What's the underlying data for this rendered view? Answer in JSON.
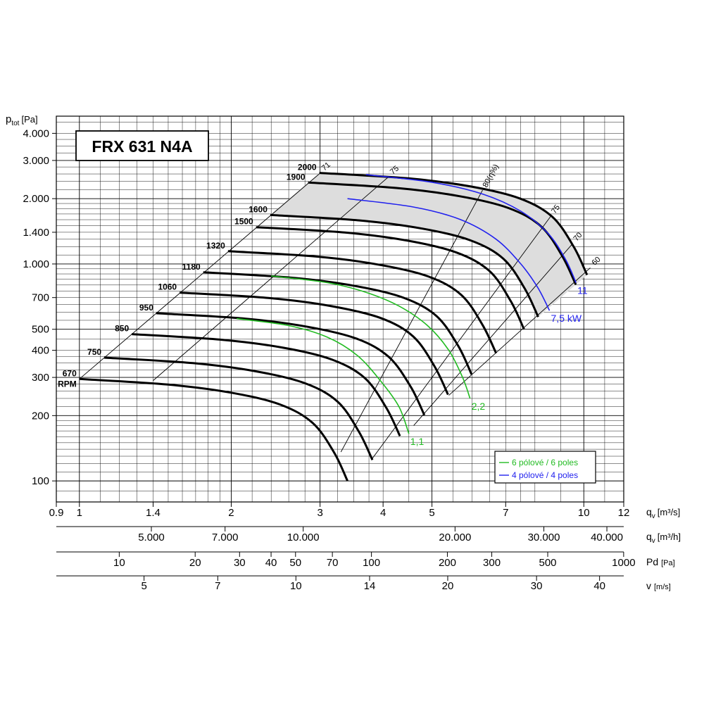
{
  "chart_data": {
    "type": "line",
    "title": "FRX 631 N4A",
    "y_axis": {
      "label": "p",
      "label_sub": "tot",
      "unit": "[Pa]",
      "scale": "log",
      "ylim": [
        80,
        4800
      ],
      "ticks": [
        "100",
        "200",
        "300",
        "400",
        "500",
        "700",
        "1.000",
        "1.400",
        "2.000",
        "3.000",
        "4.000"
      ],
      "tick_values": [
        100,
        200,
        300,
        400,
        500,
        700,
        1000,
        1400,
        2000,
        3000,
        4000
      ]
    },
    "x_axes": [
      {
        "label": "q",
        "label_sub": "v",
        "unit": "[m³/s]",
        "scale": "log",
        "xlim": [
          0.9,
          12
        ],
        "ticks": [
          "0.9",
          "1",
          "1.4",
          "2",
          "3",
          "4",
          "5",
          "7",
          "10",
          "12"
        ],
        "tick_values": [
          0.9,
          1,
          1.4,
          2,
          3,
          4,
          5,
          7,
          10,
          12
        ]
      },
      {
        "label": "q",
        "label_sub": "v",
        "unit": "[m³/h]",
        "scale": "log",
        "ticks": [
          "5.000",
          "7.000",
          "10.000",
          "20.000",
          "30.000",
          "40.000"
        ],
        "tick_values": [
          5000,
          7000,
          10000,
          20000,
          30000,
          40000
        ]
      },
      {
        "label": "Pd",
        "unit": "[Pa]",
        "scale": "log",
        "ticks": [
          "10",
          "20",
          "30",
          "40",
          "50",
          "70",
          "100",
          "200",
          "300",
          "500",
          "1000"
        ],
        "tick_values": [
          10,
          20,
          30,
          40,
          50,
          70,
          100,
          200,
          300,
          500,
          1000
        ]
      },
      {
        "label": "v",
        "unit": "[m/s]",
        "scale": "log",
        "ticks": [
          "5",
          "7",
          "10",
          "14",
          "20",
          "30",
          "40"
        ],
        "tick_values": [
          5,
          7,
          10,
          14,
          20,
          30,
          40
        ]
      }
    ],
    "rpm_unit_label": "RPM",
    "series": [
      {
        "rpm": "670",
        "points": [
          [
            1.0,
            295
          ],
          [
            1.5,
            278
          ],
          [
            2.0,
            255
          ],
          [
            2.5,
            225
          ],
          [
            2.9,
            185
          ],
          [
            3.2,
            135
          ],
          [
            3.4,
            100
          ]
        ]
      },
      {
        "rpm": "750",
        "points": [
          [
            1.12,
            370
          ],
          [
            1.68,
            349
          ],
          [
            2.24,
            320
          ],
          [
            2.8,
            282
          ],
          [
            3.25,
            232
          ],
          [
            3.58,
            169
          ],
          [
            3.81,
            125
          ]
        ]
      },
      {
        "rpm": "850",
        "points": [
          [
            1.27,
            475
          ],
          [
            1.9,
            448
          ],
          [
            2.54,
            411
          ],
          [
            3.17,
            362
          ],
          [
            3.68,
            298
          ],
          [
            4.06,
            217
          ],
          [
            4.32,
            161
          ]
        ]
      },
      {
        "rpm": "950",
        "points": [
          [
            1.42,
            593
          ],
          [
            2.13,
            560
          ],
          [
            2.84,
            513
          ],
          [
            3.55,
            452
          ],
          [
            4.11,
            372
          ],
          [
            4.54,
            271
          ],
          [
            4.83,
            201
          ]
        ]
      },
      {
        "rpm": "1060",
        "points": [
          [
            1.58,
            738
          ],
          [
            2.37,
            697
          ],
          [
            3.16,
            639
          ],
          [
            3.96,
            563
          ],
          [
            4.59,
            463
          ],
          [
            5.06,
            337
          ],
          [
            5.38,
            250
          ]
        ]
      },
      {
        "rpm": "1180",
        "points": [
          [
            1.76,
            915
          ],
          [
            2.64,
            864
          ],
          [
            3.52,
            792
          ],
          [
            4.4,
            698
          ],
          [
            5.11,
            574
          ],
          [
            5.64,
            418
          ],
          [
            5.99,
            310
          ]
        ]
      },
      {
        "rpm": "1320",
        "points": [
          [
            1.97,
            1145
          ],
          [
            2.96,
            1081
          ],
          [
            3.94,
            991
          ],
          [
            4.93,
            874
          ],
          [
            5.72,
            719
          ],
          [
            6.3,
            523
          ],
          [
            6.7,
            388
          ]
        ]
      },
      {
        "rpm": "1500",
        "points": [
          [
            2.24,
            1478
          ],
          [
            3.36,
            1396
          ],
          [
            4.48,
            1280
          ],
          [
            5.6,
            1128
          ],
          [
            6.5,
            928
          ],
          [
            7.16,
            676
          ],
          [
            7.61,
            501
          ]
        ]
      },
      {
        "rpm": "1600",
        "points": [
          [
            2.39,
            1682
          ],
          [
            3.58,
            1588
          ],
          [
            4.78,
            1456
          ],
          [
            5.97,
            1283
          ],
          [
            6.93,
            1056
          ],
          [
            7.64,
            769
          ],
          [
            8.12,
            570
          ]
        ]
      },
      {
        "rpm": "1900",
        "points": [
          [
            2.84,
            2372
          ],
          [
            4.25,
            2240
          ],
          [
            5.67,
            2053
          ],
          [
            7.09,
            1810
          ],
          [
            8.23,
            1489
          ],
          [
            9.07,
            1084
          ],
          [
            9.64,
            803
          ]
        ]
      },
      {
        "rpm": "2000",
        "points": [
          [
            2.99,
            2628
          ],
          [
            4.48,
            2482
          ],
          [
            5.97,
            2275
          ],
          [
            7.46,
            2005
          ],
          [
            8.66,
            1650
          ],
          [
            9.55,
            1201
          ],
          [
            10.15,
            890
          ]
        ]
      }
    ],
    "motor_limits": [
      {
        "label": "1,1",
        "legend": "6 pólové / 6 poles",
        "color": "#22bb22",
        "points": [
          [
            2.05,
            560
          ],
          [
            2.6,
            520
          ],
          [
            3.1,
            460
          ],
          [
            3.55,
            380
          ],
          [
            3.95,
            290
          ],
          [
            4.3,
            220
          ],
          [
            4.5,
            165
          ]
        ]
      },
      {
        "label": "2,2",
        "legend": "6 pólové / 6 poles",
        "color": "#22bb22",
        "points": [
          [
            2.4,
            880
          ],
          [
            3.1,
            820
          ],
          [
            3.7,
            740
          ],
          [
            4.3,
            640
          ],
          [
            4.9,
            520
          ],
          [
            5.4,
            400
          ],
          [
            5.75,
            300
          ],
          [
            5.95,
            240
          ]
        ]
      },
      {
        "label": "7,5 kW",
        "legend": "4 pólové / 4 poles",
        "color": "#2222ee",
        "points": [
          [
            3.4,
            2000
          ],
          [
            4.6,
            1830
          ],
          [
            5.7,
            1600
          ],
          [
            6.7,
            1300
          ],
          [
            7.5,
            1000
          ],
          [
            8.1,
            780
          ],
          [
            8.55,
            610
          ]
        ]
      },
      {
        "label": "11",
        "legend": "4 pólové / 4 poles",
        "color": "#2222ee",
        "points": [
          [
            3.7,
            2580
          ],
          [
            5.0,
            2380
          ],
          [
            6.3,
            2100
          ],
          [
            7.5,
            1750
          ],
          [
            8.5,
            1380
          ],
          [
            9.2,
            1050
          ],
          [
            9.65,
            820
          ]
        ]
      }
    ],
    "efficiency_lines": [
      {
        "label": "71",
        "points": [
          [
            3.0,
            2620
          ],
          [
            1.0,
            295
          ]
        ]
      },
      {
        "label": "75",
        "points": [
          [
            4.1,
            2520
          ],
          [
            1.4,
            290
          ]
        ]
      },
      {
        "label": "80(η%)",
        "points": [
          [
            6.3,
            2190
          ],
          [
            3.3,
            136
          ]
        ]
      },
      {
        "label": "75",
        "points": [
          [
            8.6,
            1660
          ],
          [
            3.8,
            126
          ]
        ]
      },
      {
        "label": "70",
        "points": [
          [
            9.5,
            1240
          ],
          [
            4.6,
            180
          ]
        ]
      },
      {
        "label": "60",
        "points": [
          [
            10.3,
            960
          ],
          [
            5.4,
            248
          ]
        ]
      }
    ],
    "legend": {
      "placement": "bottom-right",
      "entries": [
        {
          "text": "6 pólové / 6 poles",
          "color": "#22bb22"
        },
        {
          "text": "4 pólové / 4 poles",
          "color": "#2222ee"
        }
      ]
    },
    "grid": true
  }
}
